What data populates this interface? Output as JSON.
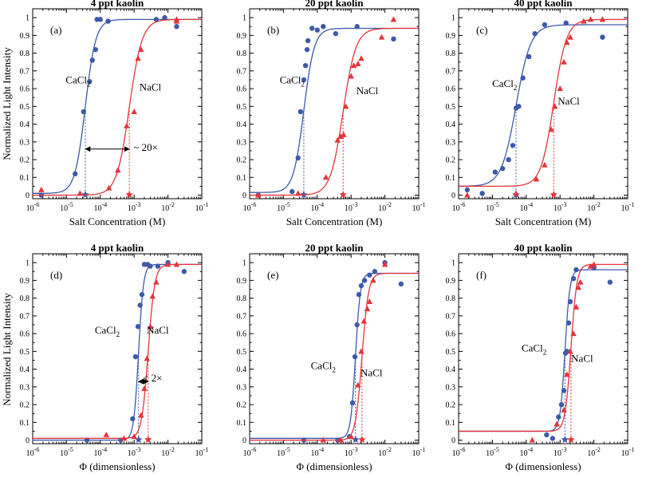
{
  "colors": {
    "cacl2": "#3d5aa8",
    "nacl": "#e3363c"
  },
  "ylabel": "Normalized Light Intensity",
  "x_tick_exponents": [
    "-6",
    "-5",
    "-4",
    "-3",
    "-2",
    "-1"
  ],
  "x_tick_base": "10",
  "y_ticks": [
    "0",
    "0.1",
    "0.2",
    "0.3",
    "0.4",
    "0.5",
    "0.6",
    "0.7",
    "0.8",
    "0.9",
    "1"
  ],
  "chart_data": [
    {
      "type": "scatter",
      "id": "a",
      "panel_label": "(a)",
      "title": "4 ppt kaolin",
      "xlabel": "Salt Concentration (M)",
      "ylabel": "Normalized Light Intensity",
      "xscale": "log",
      "xlim": [
        1e-06,
        0.1
      ],
      "ylim": [
        -0.02,
        1.05
      ],
      "series": [
        {
          "name": "CaCl₂",
          "label": "CaCl",
          "sub": "2",
          "marker": "circle",
          "x": [
            1.8e-06,
            1.8e-05,
            3.2e-05,
            4.8e-05,
            5.8e-05,
            7.2e-05,
            8e-05,
            0.0001,
            0.00017,
            0.0045,
            0.008,
            0.018
          ],
          "y": [
            0.0,
            0.12,
            0.47,
            0.64,
            0.76,
            0.82,
            0.99,
            0.99,
            0.98,
            0.99,
            1.0,
            0.95
          ],
          "fit": {
            "bottom": 0.01,
            "top": 0.99,
            "x50": 3.6e-05,
            "n": 2.8
          },
          "midpoint_x": 3.6e-05
        },
        {
          "name": "NaCl",
          "label": "NaCl",
          "sub": "",
          "marker": "triangle",
          "x": [
            1.8e-06,
            2.5e-05,
            0.00018,
            0.00033,
            0.0006,
            0.001,
            0.0013,
            0.0016,
            0.018,
            0.018
          ],
          "y": [
            0.03,
            0.01,
            0.04,
            0.14,
            0.39,
            0.47,
            0.77,
            0.82,
            0.99,
            0.98
          ],
          "fit": {
            "bottom": 0.0,
            "top": 0.99,
            "x50": 0.00072,
            "n": 2.3
          },
          "midpoint_x": 0.00072
        }
      ],
      "annotations": [
        {
          "text": "CaCl",
          "sub": "2",
          "x": 2.2e-05,
          "y": 0.63
        },
        {
          "text": "NaCl",
          "sub": "",
          "x": 0.003,
          "y": 0.59
        },
        {
          "text": "~ 20×",
          "sub": "",
          "x": 0.0022,
          "y": 0.25
        }
      ],
      "arrow": {
        "x1": 3.6e-05,
        "x2": 0.00072,
        "y": 0.26
      }
    },
    {
      "type": "scatter",
      "id": "b",
      "panel_label": "(b)",
      "title": "20 ppt kaolin",
      "xlabel": "Salt Concentration (M)",
      "ylabel": "",
      "xscale": "log",
      "xlim": [
        1e-06,
        0.1
      ],
      "ylim": [
        -0.02,
        1.05
      ],
      "series": [
        {
          "name": "CaCl₂",
          "label": "CaCl",
          "sub": "2",
          "marker": "circle",
          "x": [
            1.8e-06,
            1.8e-05,
            2.7e-05,
            3.2e-05,
            4e-05,
            4.5e-05,
            5e-05,
            5.3e-05,
            7e-05,
            0.0001,
            0.00015,
            0.00035,
            0.0015,
            0.018
          ],
          "y": [
            0.0,
            0.02,
            0.21,
            0.47,
            0.65,
            0.73,
            0.82,
            0.87,
            0.94,
            0.93,
            0.95,
            0.91,
            0.95,
            0.88
          ],
          "fit": {
            "bottom": 0.015,
            "top": 0.94,
            "x50": 4e-05,
            "n": 2.8
          },
          "midpoint_x": 4e-05
        },
        {
          "name": "NaCl",
          "label": "NaCl",
          "sub": "",
          "marker": "triangle",
          "x": [
            1.8e-06,
            2.7e-05,
            0.00018,
            0.0004,
            0.0005,
            0.0006,
            0.0007,
            0.001,
            0.0012,
            0.0016,
            0.002,
            0.008,
            0.018
          ],
          "y": [
            0.0,
            0.01,
            0.1,
            0.31,
            0.33,
            0.34,
            0.5,
            0.67,
            0.73,
            0.74,
            0.77,
            0.89,
            0.99
          ],
          "fit": {
            "bottom": 0.0,
            "top": 0.94,
            "x50": 0.00058,
            "n": 2.3
          },
          "midpoint_x": 0.00058
        }
      ],
      "annotations": [
        {
          "text": "CaCl",
          "sub": "2",
          "x": 1.8e-05,
          "y": 0.63
        },
        {
          "text": "NaCl",
          "sub": "",
          "x": 0.003,
          "y": 0.57
        }
      ],
      "arrow": null
    },
    {
      "type": "scatter",
      "id": "c",
      "panel_label": "(c)",
      "title": "40 ppt kaolin",
      "xlabel": "Salt Concentration (M)",
      "ylabel": "",
      "xscale": "log",
      "xlim": [
        1e-06,
        0.1
      ],
      "ylim": [
        -0.02,
        1.05
      ],
      "series": [
        {
          "name": "CaCl₂",
          "label": "CaCl",
          "sub": "2",
          "marker": "circle",
          "x": [
            1.8e-06,
            5e-06,
            1.2e-05,
            2e-05,
            3e-05,
            4e-05,
            5e-05,
            6e-05,
            8e-05,
            0.00012,
            0.00018,
            0.00035,
            0.0015,
            0.018
          ],
          "y": [
            0.03,
            0.01,
            0.13,
            0.15,
            0.2,
            0.28,
            0.49,
            0.5,
            0.66,
            0.78,
            0.91,
            0.96,
            0.97,
            0.89
          ],
          "fit": {
            "bottom": 0.05,
            "top": 0.96,
            "x50": 5e-05,
            "n": 2.0
          },
          "midpoint_x": 5e-05
        },
        {
          "name": "NaCl",
          "label": "NaCl",
          "sub": "",
          "marker": "triangle",
          "x": [
            1.8e-06,
            5e-05,
            0.0002,
            0.00035,
            0.00055,
            0.0007,
            0.001,
            0.0013,
            0.0016,
            0.002,
            0.005,
            0.008,
            0.018
          ],
          "y": [
            0.0,
            0.01,
            0.09,
            0.17,
            0.37,
            0.5,
            0.6,
            0.75,
            0.86,
            0.89,
            0.98,
            0.99,
            0.99
          ],
          "fit": {
            "bottom": 0.05,
            "top": 0.99,
            "x50": 0.00065,
            "n": 2.3
          },
          "midpoint_x": 0.00065
        }
      ],
      "annotations": [
        {
          "text": "CaCl",
          "sub": "2",
          "x": 2.3e-05,
          "y": 0.61
        },
        {
          "text": "NaCl",
          "sub": "",
          "x": 0.0018,
          "y": 0.51
        }
      ],
      "arrow": null
    },
    {
      "type": "scatter",
      "id": "d",
      "panel_label": "(d)",
      "title": "4 ppt kaolin",
      "xlabel": "Φ  (dimensionless)",
      "ylabel": "Normalized Light Intensity",
      "xscale": "log",
      "xlim": [
        1e-06,
        0.1
      ],
      "ylim": [
        -0.02,
        1.05
      ],
      "series": [
        {
          "name": "CaCl₂",
          "label": "CaCl",
          "sub": "2",
          "marker": "circle",
          "x": [
            4e-05,
            0.0004,
            0.0009,
            0.0011,
            0.0013,
            0.0015,
            0.0017,
            0.002,
            0.0025,
            0.003,
            0.005,
            0.01,
            0.03
          ],
          "y": [
            0.0,
            0.0,
            0.12,
            0.47,
            0.64,
            0.76,
            0.82,
            0.99,
            0.99,
            0.98,
            0.98,
            1.0,
            0.95
          ],
          "fit": {
            "bottom": 0.0,
            "top": 0.99,
            "x50": 0.00135,
            "n": 6.0
          },
          "midpoint_x": 0.00135
        },
        {
          "name": "NaCl",
          "label": "NaCl",
          "sub": "",
          "marker": "triangle",
          "x": [
            0.00015,
            0.0005,
            0.001,
            0.0016,
            0.002,
            0.0024,
            0.003,
            0.0035,
            0.0045,
            0.01,
            0.018
          ],
          "y": [
            0.03,
            0.01,
            0.02,
            0.14,
            0.29,
            0.46,
            0.64,
            0.81,
            0.89,
            0.99,
            0.99
          ],
          "fit": {
            "bottom": 0.01,
            "top": 0.99,
            "x50": 0.0026,
            "n": 4.5
          },
          "midpoint_x": 0.0026
        },
        {
          "name": "",
          "label": "",
          "sub": "",
          "marker": "none",
          "x": [],
          "y": [],
          "fit": null,
          "midpoint_x": null
        }
      ],
      "annotations": [
        {
          "text": "CaCl",
          "sub": "2",
          "x": 0.00016,
          "y": 0.6
        },
        {
          "text": "NaCl",
          "sub": "",
          "x": 0.005,
          "y": 0.6
        },
        {
          "text": "< 2×",
          "sub": "",
          "x": 0.0035,
          "y": 0.33
        }
      ],
      "arrow": {
        "x1": 0.00135,
        "x2": 0.0026,
        "y": 0.33
      }
    },
    {
      "type": "scatter",
      "id": "e",
      "panel_label": "(e)",
      "title": "20 ppt kaolin",
      "xlabel": "Φ  (dimensionless)",
      "ylabel": "",
      "xscale": "log",
      "xlim": [
        1e-06,
        0.1
      ],
      "ylim": [
        -0.02,
        1.05
      ],
      "series": [
        {
          "name": "CaCl₂",
          "label": "CaCl",
          "sub": "2",
          "marker": "circle",
          "x": [
            4e-05,
            0.0004,
            0.0009,
            0.0011,
            0.0013,
            0.0015,
            0.0017,
            0.002,
            0.0025,
            0.0035,
            0.005,
            0.01,
            0.03
          ],
          "y": [
            0.0,
            0.0,
            0.02,
            0.21,
            0.47,
            0.65,
            0.82,
            0.87,
            0.9,
            0.93,
            0.95,
            1.0,
            0.88
          ],
          "fit": {
            "bottom": 0.01,
            "top": 0.94,
            "x50": 0.00135,
            "n": 6.0
          },
          "midpoint_x": 0.00135
        },
        {
          "name": "NaCl",
          "label": "NaCl",
          "sub": "",
          "marker": "triangle",
          "x": [
            0.00015,
            0.0005,
            0.001,
            0.0016,
            0.002,
            0.0024,
            0.003,
            0.0035,
            0.0045,
            0.01
          ],
          "y": [
            0.0,
            0.0,
            0.02,
            0.31,
            0.5,
            0.67,
            0.74,
            0.78,
            0.9,
            0.99
          ],
          "fit": {
            "bottom": 0.0,
            "top": 0.94,
            "x50": 0.0021,
            "n": 4.5
          },
          "midpoint_x": 0.0021
        }
      ],
      "annotations": [
        {
          "text": "CaCl",
          "sub": "2",
          "x": 0.00015,
          "y": 0.4
        },
        {
          "text": "NaCl",
          "sub": "",
          "x": 0.004,
          "y": 0.36
        }
      ],
      "arrow": null
    },
    {
      "type": "scatter",
      "id": "f",
      "panel_label": "(f)",
      "title": "40 ppt kaolin",
      "xlabel": "Φ  (dimensionless)",
      "ylabel": "",
      "xscale": "log",
      "xlim": [
        1e-06,
        0.1
      ],
      "ylim": [
        -0.02,
        1.05
      ],
      "series": [
        {
          "name": "CaCl₂",
          "label": "CaCl",
          "sub": "2",
          "marker": "circle",
          "x": [
            0.0004,
            0.0006,
            0.0009,
            0.0011,
            0.0013,
            0.00145,
            0.0016,
            0.0018,
            0.002,
            0.0025,
            0.003,
            0.01,
            0.03
          ],
          "y": [
            0.03,
            0.01,
            0.13,
            0.2,
            0.28,
            0.49,
            0.5,
            0.66,
            0.78,
            0.91,
            0.96,
            0.97,
            0.89
          ],
          "fit": {
            "bottom": 0.05,
            "top": 0.96,
            "x50": 0.0014,
            "n": 6.0
          },
          "midpoint_x": 0.0014
        },
        {
          "name": "NaCl",
          "label": "NaCl",
          "sub": "",
          "marker": "triangle",
          "x": [
            0.00015,
            0.0008,
            0.0013,
            0.0016,
            0.002,
            0.0025,
            0.003,
            0.0035,
            0.004,
            0.008,
            0.01
          ],
          "y": [
            0.0,
            0.09,
            0.17,
            0.37,
            0.5,
            0.6,
            0.75,
            0.86,
            0.89,
            0.98,
            0.99
          ],
          "fit": {
            "bottom": 0.05,
            "top": 0.99,
            "x50": 0.0021,
            "n": 5.0
          },
          "midpoint_x": 0.0021
        }
      ],
      "annotations": [
        {
          "text": "CaCl",
          "sub": "2",
          "x": 0.00017,
          "y": 0.5
        },
        {
          "text": "NaCl",
          "sub": "",
          "x": 0.0045,
          "y": 0.44
        }
      ],
      "arrow": null
    }
  ]
}
